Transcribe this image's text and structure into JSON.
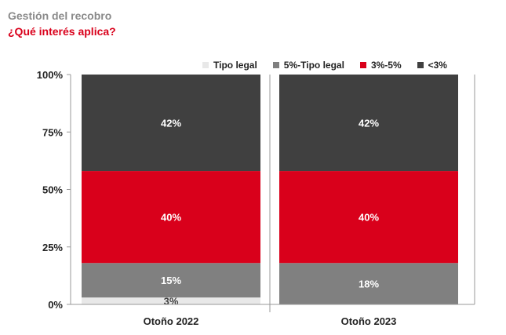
{
  "header": {
    "subtitle": "Gestión del recobro",
    "title": "¿Qué interés aplica?"
  },
  "colors": {
    "accent": "#d9001b",
    "dark": "#404040",
    "gray": "#808080",
    "light": "#e8e8e8"
  },
  "chart_data": {
    "type": "bar",
    "stacked": true,
    "categories": [
      "Otoño 2022",
      "Otoño 2023"
    ],
    "series": [
      {
        "name": "Tipo legal",
        "values": [
          3,
          0
        ],
        "labels": [
          "3%",
          ""
        ],
        "color": "#e8e8e8"
      },
      {
        "name": "5%-Tipo legal",
        "values": [
          15,
          18
        ],
        "labels": [
          "15%",
          "18%"
        ],
        "color": "#808080"
      },
      {
        "name": "3%-5%",
        "values": [
          40,
          40
        ],
        "labels": [
          "40%",
          "40%"
        ],
        "color": "#d9001b"
      },
      {
        "name": "<3%",
        "values": [
          42,
          42
        ],
        "labels": [
          "42%",
          "42%"
        ],
        "color": "#404040"
      }
    ],
    "ylim": [
      0,
      100
    ],
    "yticks": [
      "0%",
      "25%",
      "50%",
      "75%",
      "100%"
    ],
    "legend_position": "top-right",
    "grid": false
  }
}
